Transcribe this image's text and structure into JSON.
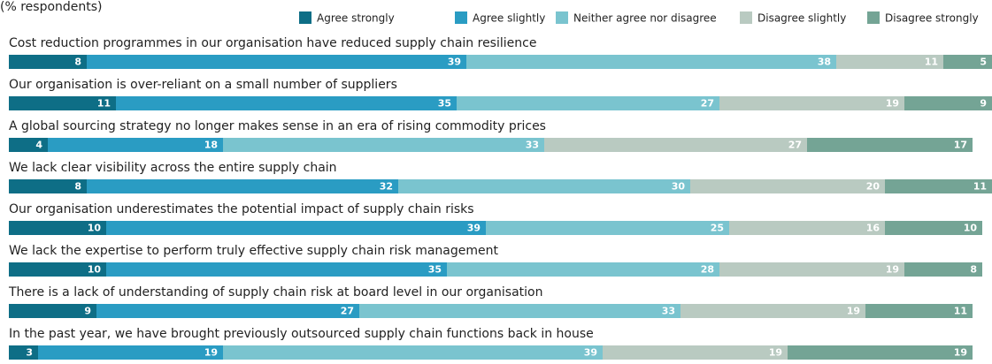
{
  "chart_data": {
    "type": "stacked-bar-horizontal",
    "subtitle": "(% respondents)",
    "categories": [
      "Cost reduction programmes in our organisation have reduced supply chain resilience",
      "Our organisation is over-reliant on a small number of suppliers",
      "A global sourcing strategy no longer makes sense in an era of rising commodity prices",
      "We lack clear visibility across the entire supply chain",
      "Our organisation underestimates the potential impact of supply chain risks",
      "We lack the expertise to perform truly effective supply chain risk management",
      "There is a lack of understanding of supply chain risk at board level in our organisation",
      "In the past year, we have brought previously outsourced supply chain functions back in house"
    ],
    "series": [
      {
        "name": "Agree strongly",
        "color": "#0e6e86",
        "values": [
          8,
          11,
          4,
          8,
          10,
          10,
          9,
          3
        ]
      },
      {
        "name": "Agree slightly",
        "color": "#2a9cc3",
        "values": [
          39,
          35,
          18,
          32,
          39,
          35,
          27,
          19
        ]
      },
      {
        "name": "Neither agree nor disagree",
        "color": "#7ac4cf",
        "values": [
          38,
          27,
          33,
          30,
          25,
          28,
          33,
          39
        ]
      },
      {
        "name": "Disagree slightly",
        "color": "#b9cac1",
        "values": [
          11,
          19,
          27,
          20,
          16,
          19,
          19,
          19
        ]
      },
      {
        "name": "Disagree strongly",
        "color": "#74a495",
        "values": [
          5,
          9,
          17,
          11,
          10,
          8,
          11,
          19
        ]
      }
    ],
    "xlim": [
      0,
      101
    ]
  }
}
